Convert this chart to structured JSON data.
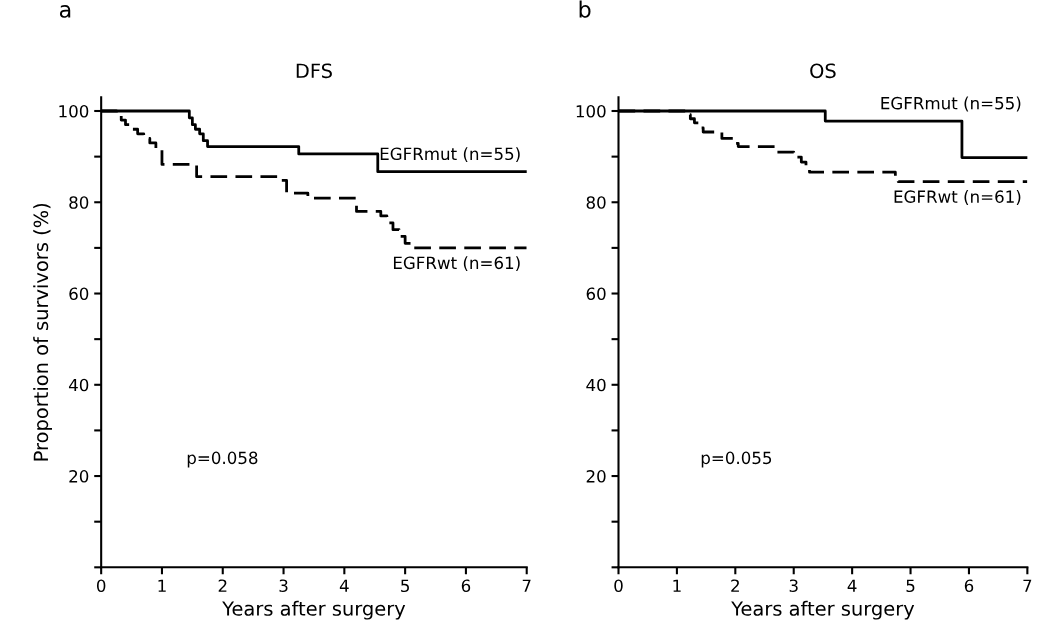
{
  "chart_data": [
    {
      "type": "step",
      "title": "DFS",
      "xlabel": "Years after surgery",
      "ylabel": "Proportion of survivors (%)",
      "annotations": [
        "a",
        "p=0.058"
      ],
      "series": [
        {
          "name": "EGFRmut (n=55)",
          "color": "#000000",
          "line_style": "solid",
          "x": [
            0,
            1.45,
            1.5,
            1.55,
            1.62,
            1.68,
            1.75,
            3.25,
            4.55,
            7
          ],
          "values": [
            100,
            98.5,
            97,
            96,
            95,
            93.5,
            92.2,
            90.6,
            86.7,
            86.7
          ]
        },
        {
          "name": "EGFRwt (n=61)",
          "color": "#000000",
          "line_style": "dashed",
          "x": [
            0,
            0.25,
            0.33,
            0.4,
            0.5,
            0.6,
            0.7,
            0.8,
            0.9,
            1.0,
            1.57,
            2.97,
            3.05,
            3.4,
            4.2,
            4.6,
            4.7,
            4.8,
            4.9,
            5.0,
            5.1,
            7
          ],
          "values": [
            100,
            99,
            98,
            97,
            96,
            95,
            94,
            93,
            91.5,
            88.3,
            85.6,
            84.8,
            82,
            80.9,
            78,
            77,
            75.5,
            74,
            72.5,
            71,
            70,
            70
          ]
        }
      ],
      "xlim": [
        0,
        7
      ],
      "xticks": [
        0,
        1,
        2,
        3,
        4,
        5,
        6,
        7
      ],
      "ylim": [
        0,
        103
      ],
      "yticks": [
        {
          "value": 0,
          "label": null
        },
        {
          "value": 10,
          "label": null
        },
        20,
        {
          "value": 30,
          "label": null
        },
        40,
        {
          "value": 50,
          "label": null
        },
        60,
        {
          "value": 70,
          "label": null
        },
        80,
        {
          "value": 90,
          "label": null
        },
        100
      ],
      "grid": false,
      "legend": false
    },
    {
      "type": "step",
      "title": "OS",
      "xlabel": "Years after surgery",
      "annotations": [
        "b",
        "p=0.055"
      ],
      "series": [
        {
          "name": "EGFRmut (n=55)",
          "color": "#000000",
          "line_style": "solid",
          "x": [
            0,
            3.54,
            5.88,
            7
          ],
          "values": [
            100,
            97.8,
            89.8,
            89.8
          ]
        },
        {
          "name": "EGFRwt (n=61)",
          "color": "#000000",
          "line_style": "dashed",
          "x": [
            0,
            1.17,
            1.23,
            1.3,
            1.37,
            1.45,
            1.77,
            2.0,
            2.05,
            2.72,
            3.0,
            3.13,
            3.21,
            3.27,
            4.74,
            4.79,
            7
          ],
          "values": [
            100,
            99.2,
            98.3,
            97.4,
            96.3,
            95.4,
            94,
            92.9,
            92.2,
            91,
            89.9,
            88.8,
            87.7,
            86.6,
            85.6,
            84.5,
            84.5
          ]
        }
      ],
      "xlim": [
        0,
        7
      ],
      "xticks": [
        0,
        1,
        2,
        3,
        4,
        5,
        6,
        7
      ],
      "ylim": [
        0,
        103
      ],
      "yticks": [
        {
          "value": 0,
          "label": null
        },
        {
          "value": 10,
          "label": null
        },
        20,
        {
          "value": 30,
          "label": null
        },
        40,
        {
          "value": 50,
          "label": null
        },
        60,
        {
          "value": 70,
          "label": null
        },
        80,
        {
          "value": 90,
          "label": null
        },
        100
      ],
      "grid": false,
      "legend": false
    }
  ]
}
